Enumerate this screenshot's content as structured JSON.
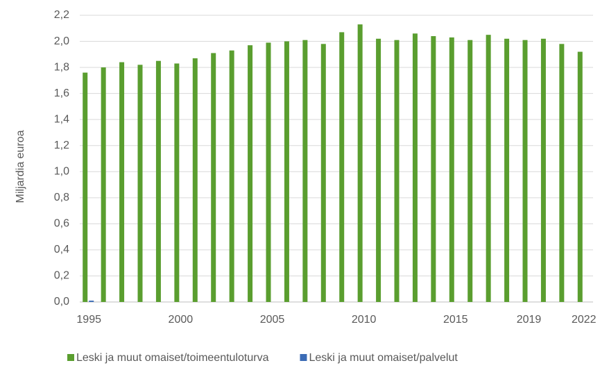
{
  "chart_data": {
    "type": "bar",
    "y_label": "Miljardia euroa",
    "categories": [
      "1995",
      null,
      null,
      null,
      null,
      "2000",
      null,
      null,
      null,
      null,
      "2005",
      null,
      null,
      null,
      null,
      "2010",
      null,
      null,
      null,
      null,
      "2015",
      null,
      null,
      null,
      "2019",
      null,
      null,
      "2022"
    ],
    "series": [
      {
        "name": "Leski ja muut omaiset/toimeentuloturva",
        "color": "#5a9e2f",
        "values": [
          1.76,
          1.8,
          1.84,
          1.82,
          1.85,
          1.83,
          1.87,
          1.91,
          1.93,
          1.97,
          1.99,
          2.0,
          2.01,
          1.98,
          2.07,
          2.13,
          2.02,
          2.01,
          2.06,
          2.04,
          2.03,
          2.01,
          2.05,
          2.02,
          2.01,
          2.02,
          1.98,
          1.92
        ]
      },
      {
        "name": "Leski ja muut omaiset/palvelut",
        "color": "#3b6bb5",
        "values": [
          0.01,
          0,
          0,
          0,
          0,
          0,
          0,
          0,
          0,
          0,
          0,
          0,
          0,
          0,
          0,
          0,
          0,
          0,
          0,
          0,
          0,
          0,
          0,
          0,
          0,
          0,
          0,
          0
        ]
      }
    ],
    "ylim": [
      0,
      2.2
    ],
    "yticks": [
      {
        "value": 0,
        "label": "0,0"
      },
      {
        "value": 0.2,
        "label": "0,2"
      },
      {
        "value": 0.4,
        "label": "0,4"
      },
      {
        "value": 0.6,
        "label": "0,6"
      },
      {
        "value": 0.8,
        "label": "0,8"
      },
      {
        "value": 1.0,
        "label": "1,0"
      },
      {
        "value": 1.2,
        "label": "1,2"
      },
      {
        "value": 1.4,
        "label": "1,4"
      },
      {
        "value": 1.6,
        "label": "1,6"
      },
      {
        "value": 1.8,
        "label": "1,8"
      },
      {
        "value": 2.0,
        "label": "2,0"
      },
      {
        "value": 2.2,
        "label": "2,2"
      }
    ],
    "grid": true
  }
}
